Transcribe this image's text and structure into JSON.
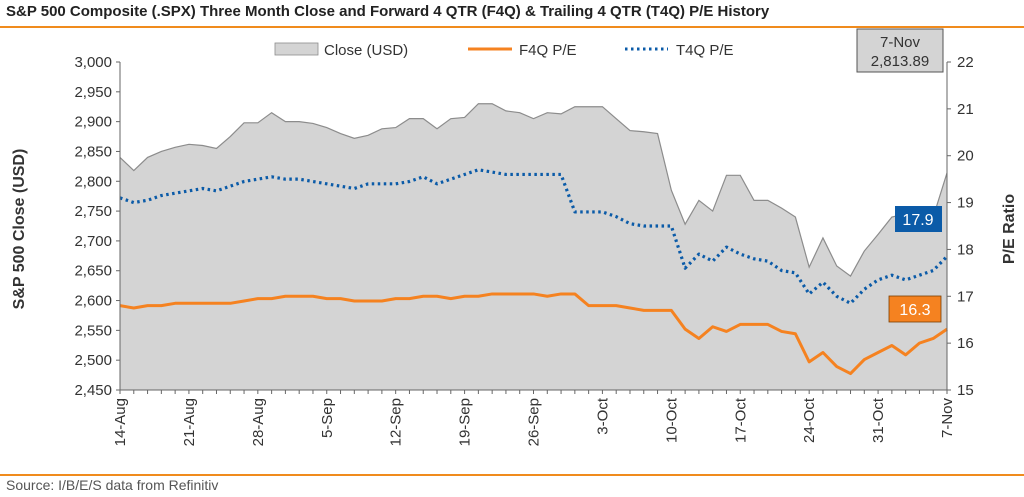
{
  "title": "S&P 500 Composite (.SPX) Three Month Close and Forward 4 QTR (F4Q) & Trailing 4 QTR (T4Q) P/E History",
  "source": "Source: I/B/E/S data from Refinitiv",
  "legend": {
    "close": "Close (USD)",
    "f4q": "F4Q P/E",
    "t4q": "T4Q P/E"
  },
  "last_date_box": {
    "date": "7-Nov",
    "value": "2,813.89"
  },
  "callouts": {
    "t4q": "17.9",
    "f4q": "16.3"
  },
  "colors": {
    "area_fill": "#d4d4d4",
    "area_stroke": "#8c8c8c",
    "f4q": "#f58220",
    "t4q": "#0b5ba8",
    "t4q_box": "#0b5ba8",
    "f4q_box": "#f58220"
  },
  "chart_data": {
    "type": "area",
    "ylabel": "S&P 500 Close (USD)",
    "y2label": "P/E Ratio",
    "ylim": [
      2450,
      3000
    ],
    "y2lim": [
      15,
      22
    ],
    "yticks": [
      "2,450",
      "2,500",
      "2,550",
      "2,600",
      "2,650",
      "2,700",
      "2,750",
      "2,800",
      "2,850",
      "2,900",
      "2,950",
      "3,000"
    ],
    "y2ticks": [
      "15",
      "16",
      "17",
      "18",
      "19",
      "20",
      "21",
      "22"
    ],
    "xtick_labels": [
      "14-Aug",
      "21-Aug",
      "28-Aug",
      "5-Sep",
      "12-Sep",
      "19-Sep",
      "26-Sep",
      "3-Oct",
      "10-Oct",
      "17-Oct",
      "24-Oct",
      "31-Oct",
      "7-Nov"
    ],
    "xtick_index": [
      0,
      5,
      10,
      15,
      20,
      25,
      30,
      35,
      40,
      45,
      50,
      55,
      60
    ],
    "series": [
      {
        "name": "Close (USD)",
        "axis": "left",
        "values": [
          2840,
          2818,
          2840,
          2850,
          2857,
          2862,
          2860,
          2855,
          2875,
          2898,
          2898,
          2915,
          2900,
          2900,
          2897,
          2890,
          2880,
          2872,
          2877,
          2888,
          2890,
          2905,
          2905,
          2888,
          2905,
          2907,
          2930,
          2930,
          2918,
          2915,
          2905,
          2915,
          2913,
          2925,
          2925,
          2925,
          2905,
          2885,
          2883,
          2880,
          2785,
          2728,
          2768,
          2750,
          2810,
          2810,
          2768,
          2768,
          2755,
          2740,
          2656,
          2705,
          2658,
          2641,
          2683,
          2711,
          2740,
          2745,
          2723,
          2740,
          2813.89
        ]
      },
      {
        "name": "F4Q P/E",
        "axis": "right",
        "values": [
          16.8,
          16.75,
          16.8,
          16.8,
          16.85,
          16.85,
          16.85,
          16.85,
          16.85,
          16.9,
          16.95,
          16.95,
          17.0,
          17.0,
          17.0,
          16.95,
          16.95,
          16.9,
          16.9,
          16.9,
          16.95,
          16.95,
          17.0,
          17.0,
          16.95,
          17.0,
          17.0,
          17.05,
          17.05,
          17.05,
          17.05,
          17.0,
          17.05,
          17.05,
          16.8,
          16.8,
          16.8,
          16.75,
          16.7,
          16.7,
          16.7,
          16.3,
          16.1,
          16.35,
          16.25,
          16.4,
          16.4,
          16.4,
          16.25,
          16.2,
          15.6,
          15.8,
          15.5,
          15.35,
          15.65,
          15.8,
          15.95,
          15.75,
          16.0,
          16.1,
          16.3
        ]
      },
      {
        "name": "T4Q P/E",
        "axis": "right",
        "values": [
          19.1,
          19.0,
          19.05,
          19.15,
          19.2,
          19.25,
          19.3,
          19.25,
          19.35,
          19.45,
          19.5,
          19.55,
          19.5,
          19.5,
          19.45,
          19.4,
          19.35,
          19.3,
          19.4,
          19.4,
          19.4,
          19.45,
          19.55,
          19.4,
          19.5,
          19.6,
          19.7,
          19.65,
          19.6,
          19.6,
          19.6,
          19.6,
          19.6,
          18.8,
          18.8,
          18.8,
          18.7,
          18.55,
          18.5,
          18.5,
          18.5,
          17.6,
          17.9,
          17.75,
          18.05,
          17.9,
          17.8,
          17.75,
          17.55,
          17.5,
          17.05,
          17.3,
          17.0,
          16.85,
          17.15,
          17.35,
          17.45,
          17.35,
          17.45,
          17.55,
          17.85
        ]
      }
    ]
  }
}
